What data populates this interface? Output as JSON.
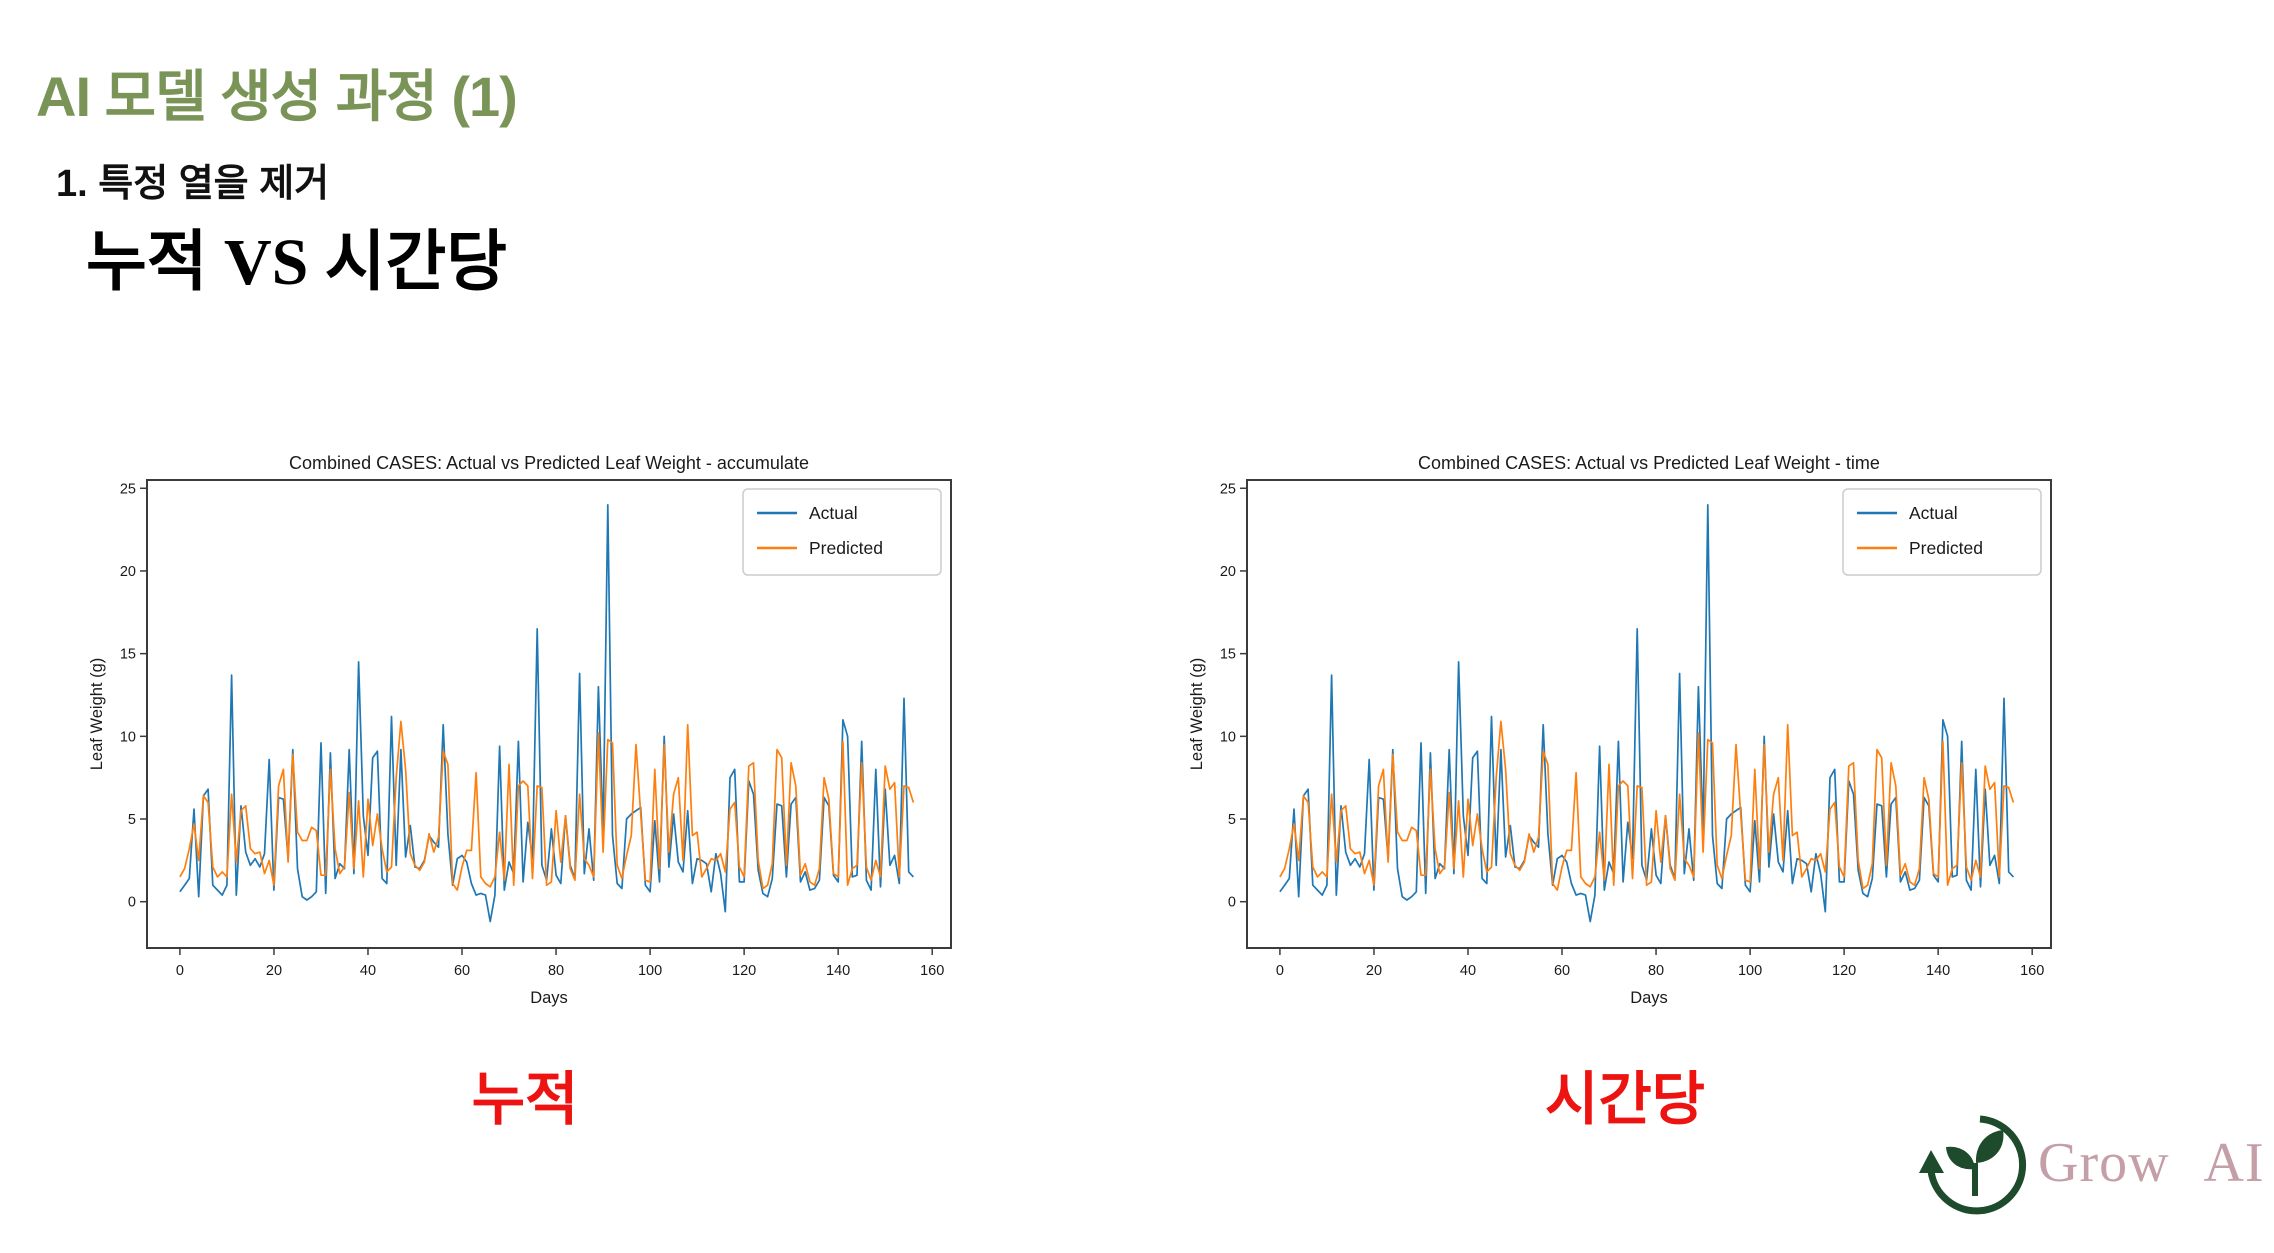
{
  "slide": {
    "title": "AI 모델 생성 과정 (1)",
    "subtitle": "1. 특정 열을 제거",
    "comparison_heading": "누적 VS 시간당",
    "caption_left": "누적",
    "caption_right": "시간당",
    "logo_text": "Grow AI",
    "colors": {
      "title_green": "#7a9458",
      "caption_red": "#ec1310",
      "logo_green": "#1d4b2b",
      "logo_text_mauve": "#c49fa7",
      "actual_blue": "#1f77b4",
      "predicted_orange": "#ff7f0e",
      "axis_dark": "#3b3b3b",
      "chart_text": "#1a1a1a",
      "legend_border": "#cccccc"
    }
  },
  "chart_data": [
    {
      "type": "line",
      "title": "Combined CASES: Actual vs Predicted Leaf Weight - accumulate",
      "xlabel": "Days",
      "ylabel": "Leaf Weight (g)",
      "xlim": [
        -7,
        164
      ],
      "ylim": [
        -2.8,
        25.5
      ],
      "xticks": [
        0,
        20,
        40,
        60,
        80,
        100,
        120,
        140,
        160
      ],
      "yticks": [
        0,
        5,
        10,
        15,
        20,
        25
      ],
      "grid": false,
      "legend_position": "upper right",
      "x0": 0,
      "dx": 1,
      "series": [
        {
          "name": "Actual",
          "color": "#1f77b4",
          "values": [
            0.6,
            1.0,
            1.4,
            5.6,
            0.3,
            6.4,
            6.8,
            1.0,
            0.7,
            0.4,
            1.0,
            13.7,
            0.4,
            5.8,
            3.0,
            2.2,
            2.6,
            2.1,
            2.9,
            8.6,
            0.7,
            6.3,
            6.2,
            2.6,
            9.2,
            2.0,
            0.3,
            0.1,
            0.3,
            0.6,
            9.6,
            0.5,
            9.0,
            1.4,
            2.3,
            2.0,
            9.2,
            1.7,
            14.5,
            5.2,
            2.8,
            8.7,
            9.1,
            1.4,
            1.1,
            11.2,
            2.2,
            9.2,
            2.7,
            4.6,
            2.1,
            2.0,
            2.5,
            4.0,
            3.6,
            3.3,
            10.7,
            4.1,
            1.0,
            2.6,
            2.8,
            2.4,
            1.1,
            0.4,
            0.5,
            0.4,
            -1.2,
            0.4,
            9.4,
            0.7,
            2.4,
            1.7,
            9.7,
            1.2,
            4.8,
            2.6,
            16.5,
            2.2,
            1.3,
            4.4,
            1.6,
            1.1,
            5.2,
            2.2,
            1.4,
            13.8,
            1.7,
            4.4,
            1.3,
            13.0,
            4.2,
            24.0,
            4.0,
            1.1,
            0.8,
            5.0,
            5.3,
            5.5,
            5.7,
            1.0,
            0.6,
            4.9,
            1.2,
            10.0,
            2.1,
            5.3,
            2.4,
            1.8,
            5.5,
            1.1,
            2.6,
            2.5,
            2.3,
            0.6,
            2.9,
            1.7,
            -0.6,
            7.5,
            8.0,
            1.2,
            1.2,
            7.3,
            6.5,
            1.9,
            0.5,
            0.3,
            1.4,
            5.9,
            5.8,
            1.5,
            5.9,
            6.3,
            1.2,
            1.8,
            0.7,
            0.8,
            1.3,
            6.3,
            5.8,
            1.6,
            1.2,
            11.0,
            10.0,
            1.5,
            1.6,
            9.7,
            1.3,
            0.7,
            8.0,
            0.9,
            6.8,
            2.2,
            2.8,
            1.1,
            12.3,
            1.8,
            1.5
          ]
        },
        {
          "name": "Predicted",
          "color": "#ff7f0e",
          "values": [
            1.5,
            2.0,
            3.2,
            4.7,
            2.5,
            6.4,
            6.0,
            2.1,
            1.5,
            1.8,
            1.5,
            6.5,
            2.4,
            5.5,
            5.8,
            3.2,
            2.9,
            3.0,
            1.7,
            2.5,
            1.0,
            7.0,
            8.0,
            2.4,
            8.9,
            4.2,
            3.7,
            3.7,
            4.5,
            4.3,
            1.6,
            1.6,
            8.0,
            3.2,
            1.7,
            2.1,
            6.6,
            2.0,
            6.1,
            1.5,
            6.2,
            3.4,
            5.3,
            3.2,
            1.8,
            2.1,
            7.5,
            10.9,
            8.0,
            2.9,
            2.2,
            1.9,
            2.4,
            4.1,
            3.0,
            3.9,
            9.1,
            8.3,
            1.1,
            0.7,
            2.1,
            3.1,
            3.1,
            7.8,
            1.5,
            1.1,
            0.9,
            1.5,
            4.2,
            1.3,
            8.3,
            1.0,
            7.0,
            7.3,
            7.0,
            1.4,
            7.0,
            6.9,
            1.0,
            1.2,
            5.5,
            2.4,
            5.2,
            2.0,
            1.3,
            6.5,
            2.6,
            2.2,
            1.5,
            10.2,
            3.0,
            9.8,
            9.6,
            2.2,
            1.4,
            2.8,
            4.0,
            9.5,
            5.3,
            1.3,
            1.2,
            8.0,
            2.0,
            9.5,
            3.0,
            6.5,
            7.5,
            2.5,
            10.7,
            4.0,
            4.2,
            1.5,
            2.0,
            2.6,
            2.5,
            2.9,
            1.8,
            5.6,
            6.0,
            2.1,
            1.5,
            8.2,
            8.4,
            2.5,
            0.8,
            1.0,
            2.3,
            9.2,
            8.7,
            2.2,
            8.4,
            7.0,
            1.6,
            2.3,
            1.2,
            1.0,
            2.0,
            7.5,
            6.2,
            1.7,
            1.5,
            9.7,
            1.0,
            2.0,
            2.2,
            8.4,
            2.1,
            1.3,
            2.5,
            1.5,
            8.2,
            6.8,
            7.2,
            1.5,
            7.0,
            6.9,
            6.0
          ]
        }
      ]
    },
    {
      "type": "line",
      "title": "Combined CASES: Actual vs Predicted Leaf Weight - time",
      "xlabel": "Days",
      "ylabel": "Leaf Weight (g)",
      "xlim": [
        -7,
        164
      ],
      "ylim": [
        -2.8,
        25.5
      ],
      "xticks": [
        0,
        20,
        40,
        60,
        80,
        100,
        120,
        140,
        160
      ],
      "yticks": [
        0,
        5,
        10,
        15,
        20,
        25
      ],
      "grid": false,
      "legend_position": "upper right",
      "x0": 0,
      "dx": 1,
      "series": [
        {
          "name": "Actual",
          "color": "#1f77b4",
          "values": [
            0.6,
            1.0,
            1.4,
            5.6,
            0.3,
            6.4,
            6.8,
            1.0,
            0.7,
            0.4,
            1.0,
            13.7,
            0.4,
            5.8,
            3.0,
            2.2,
            2.6,
            2.1,
            2.9,
            8.6,
            0.7,
            6.3,
            6.2,
            2.6,
            9.2,
            2.0,
            0.3,
            0.1,
            0.3,
            0.6,
            9.6,
            0.5,
            9.0,
            1.4,
            2.3,
            2.0,
            9.2,
            1.7,
            14.5,
            5.2,
            2.8,
            8.7,
            9.1,
            1.4,
            1.1,
            11.2,
            2.2,
            9.2,
            2.7,
            4.6,
            2.1,
            2.0,
            2.5,
            4.0,
            3.6,
            3.3,
            10.7,
            4.1,
            1.0,
            2.6,
            2.8,
            2.4,
            1.1,
            0.4,
            0.5,
            0.4,
            -1.2,
            0.4,
            9.4,
            0.7,
            2.4,
            1.7,
            9.7,
            1.2,
            4.8,
            2.6,
            16.5,
            2.2,
            1.3,
            4.4,
            1.6,
            1.1,
            5.2,
            2.2,
            1.4,
            13.8,
            1.7,
            4.4,
            1.3,
            13.0,
            4.2,
            24.0,
            4.0,
            1.1,
            0.8,
            5.0,
            5.3,
            5.5,
            5.7,
            1.0,
            0.6,
            4.9,
            1.2,
            10.0,
            2.1,
            5.3,
            2.4,
            1.8,
            5.5,
            1.1,
            2.6,
            2.5,
            2.3,
            0.6,
            2.9,
            1.7,
            -0.6,
            7.5,
            8.0,
            1.2,
            1.2,
            7.3,
            6.5,
            1.9,
            0.5,
            0.3,
            1.4,
            5.9,
            5.8,
            1.5,
            5.9,
            6.3,
            1.2,
            1.8,
            0.7,
            0.8,
            1.3,
            6.3,
            5.8,
            1.6,
            1.2,
            11.0,
            10.0,
            1.5,
            1.6,
            9.7,
            1.3,
            0.7,
            8.0,
            0.9,
            6.8,
            2.2,
            2.8,
            1.1,
            12.3,
            1.8,
            1.5
          ]
        },
        {
          "name": "Predicted",
          "color": "#ff7f0e",
          "values": [
            1.5,
            2.0,
            3.2,
            4.7,
            2.5,
            6.4,
            6.0,
            2.1,
            1.5,
            1.8,
            1.5,
            6.5,
            2.4,
            5.5,
            5.8,
            3.2,
            2.9,
            3.0,
            1.7,
            2.5,
            1.0,
            7.0,
            8.0,
            2.4,
            8.9,
            4.2,
            3.7,
            3.7,
            4.5,
            4.3,
            1.6,
            1.6,
            8.0,
            3.2,
            1.7,
            2.1,
            6.6,
            2.0,
            6.1,
            1.5,
            6.2,
            3.4,
            5.3,
            3.2,
            1.8,
            2.1,
            7.5,
            10.9,
            8.0,
            2.9,
            2.2,
            1.9,
            2.4,
            4.1,
            3.0,
            3.9,
            9.1,
            8.3,
            1.1,
            0.7,
            2.1,
            3.1,
            3.1,
            7.8,
            1.5,
            1.1,
            0.9,
            1.5,
            4.2,
            1.3,
            8.3,
            1.0,
            7.0,
            7.3,
            7.0,
            1.4,
            7.0,
            6.9,
            1.0,
            1.2,
            5.5,
            2.4,
            5.2,
            2.0,
            1.3,
            6.5,
            2.6,
            2.2,
            1.5,
            10.2,
            3.0,
            9.8,
            9.6,
            2.2,
            1.4,
            2.8,
            4.0,
            9.5,
            5.3,
            1.3,
            1.2,
            8.0,
            2.0,
            9.5,
            3.0,
            6.5,
            7.5,
            2.5,
            10.7,
            4.0,
            4.2,
            1.5,
            2.0,
            2.6,
            2.5,
            2.9,
            1.8,
            5.6,
            6.0,
            2.1,
            1.5,
            8.2,
            8.4,
            2.5,
            0.8,
            1.0,
            2.3,
            9.2,
            8.7,
            2.2,
            8.4,
            7.0,
            1.6,
            2.3,
            1.2,
            1.0,
            2.0,
            7.5,
            6.2,
            1.7,
            1.5,
            9.7,
            1.0,
            2.0,
            2.2,
            8.4,
            2.1,
            1.3,
            2.5,
            1.5,
            8.2,
            6.8,
            7.2,
            1.5,
            7.0,
            6.9,
            6.0
          ]
        }
      ]
    }
  ]
}
